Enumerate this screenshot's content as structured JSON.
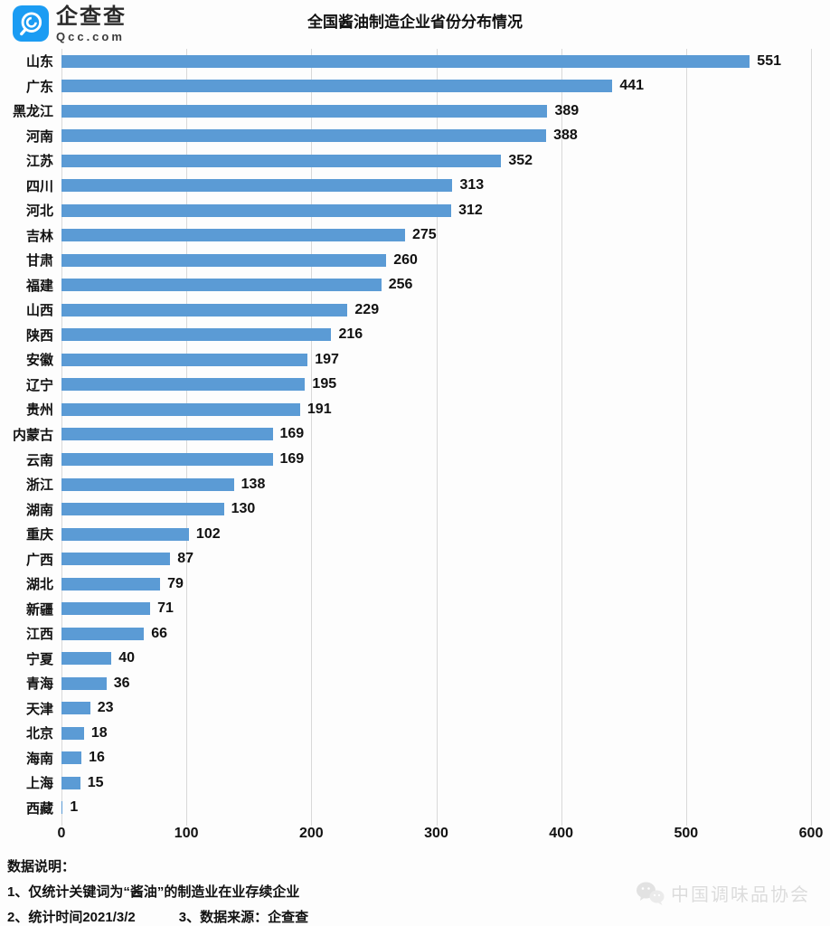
{
  "header": {
    "logo": {
      "text": "企查查",
      "subtext": "Qcc.com"
    }
  },
  "chart_data": {
    "type": "bar",
    "orientation": "horizontal",
    "title": "全国酱油制造企业省份分布情况",
    "categories": [
      "山东",
      "广东",
      "黑龙江",
      "河南",
      "江苏",
      "四川",
      "河北",
      "吉林",
      "甘肃",
      "福建",
      "山西",
      "陕西",
      "安徽",
      "辽宁",
      "贵州",
      "内蒙古",
      "云南",
      "浙江",
      "湖南",
      "重庆",
      "广西",
      "湖北",
      "新疆",
      "江西",
      "宁夏",
      "青海",
      "天津",
      "北京",
      "海南",
      "上海",
      "西藏"
    ],
    "values": [
      551,
      441,
      389,
      388,
      352,
      313,
      312,
      275,
      260,
      256,
      229,
      216,
      197,
      195,
      191,
      169,
      169,
      138,
      130,
      102,
      87,
      79,
      71,
      66,
      40,
      36,
      23,
      18,
      16,
      15,
      1
    ],
    "xlabel": "",
    "ylabel": "",
    "xlim": [
      0,
      600
    ],
    "xticks": [
      0,
      100,
      200,
      300,
      400,
      500,
      600
    ],
    "grid": true,
    "legend": "none",
    "bar_color": "#5b9bd5",
    "gridline_color": "#d9d9d9"
  },
  "footer": {
    "heading": "数据说明：",
    "note1": "1、仅统计关键词为“酱油”的制造业在业存续企业",
    "note2": "2、统计时间2021/3/2",
    "note3": "3、数据来源：企查查",
    "watermark": "中国调味品协会"
  }
}
